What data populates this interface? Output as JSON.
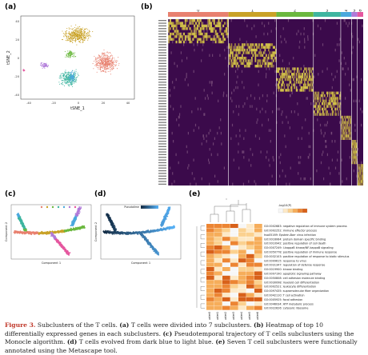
{
  "panels": {
    "a": "(a)",
    "b": "(b)",
    "c": "(c)",
    "d": "(d)",
    "e": "(e)"
  },
  "panel_a": {
    "xlabel": "tSNE_1",
    "ylabel": "tSNE_2",
    "xticks": [
      "-40",
      "-20",
      "0",
      "20",
      "40"
    ],
    "yticks": [
      "40",
      "20",
      "0",
      "-20",
      "-40"
    ],
    "cluster_colors": [
      "#e8806f",
      "#c9a227",
      "#6bb83f",
      "#3fb5a0",
      "#4aa8dd",
      "#b07ad9",
      "#e5579f"
    ]
  },
  "panel_b": {
    "cluster_labels": [
      "0",
      "1",
      "2",
      "3",
      "4",
      "5",
      "6"
    ],
    "cluster_colors": [
      "#e8806f",
      "#c9a227",
      "#6bb83f",
      "#3fb5a0",
      "#4aa8dd",
      "#b07ad9",
      "#e5579f"
    ]
  },
  "panel_c": {
    "xlabel": "Component 1",
    "ylabel": "Component 2"
  },
  "panel_d": {
    "xlabel": "Component 1",
    "ylabel": "Component 2",
    "legend_title": "Pseudotime"
  },
  "panel_e": {
    "legend_title": "-log10(P)",
    "go_terms": [
      "GO:0002683: negative regulation of immune system process",
      "GO:0002252: immune effector process",
      "hsa05169: Epstein-Barr virus infection",
      "GO:0016064: protein domain specific binding",
      "GO:0010942: positive regulation of cell death",
      "GO:0007249: I-kappaB kinase/NF-kappaB signaling",
      "GO:0050778: positive regulation of immune response",
      "GO:0032103: positive regulation of response to biotic stimulus",
      "GO:0009615: response to virus",
      "GO:0031347: regulation of defense response",
      "GO:0019900: kinase binding",
      "GO:0097190: apoptotic signaling pathway",
      "GO:0050808: cell adhesion molecule binding",
      "GO:0030098: myeloid cell differentiation",
      "GO:0002521: leukocyte differentiation",
      "GO:0097435: supramolecular fiber organization",
      "GO:0042110: T cell activation",
      "GO:0005925: focal adhesion",
      "GO:0046034: ATP metabolic process",
      "GO:0022626: cytosolic ribosome"
    ],
    "columns": [
      "cluster0",
      "cluster1",
      "cluster2",
      "cluster3",
      "cluster4",
      "cluster5",
      "cluster6"
    ]
  },
  "caption": {
    "figure_label": "Figure 3.",
    "text_1": " Subclusters of the T cells. ",
    "a_label": "(a)",
    "text_2": " T cells were divided into 7 subclusters. ",
    "b_label": "(b)",
    "text_3": " Heatmap of top 10 differentially expressed genes in each subclusters. ",
    "c_label": "(c)",
    "text_4": " Pseudotemporal trajectory of T cells subclusters using the Monocle algorithm. ",
    "d_label": "(d)",
    "text_5": " T cells evolved from dark blue to light blue. ",
    "e_label": "(e)",
    "text_6": " Seven T cell subclusters were functionally annotated using the Metascape tool."
  }
}
